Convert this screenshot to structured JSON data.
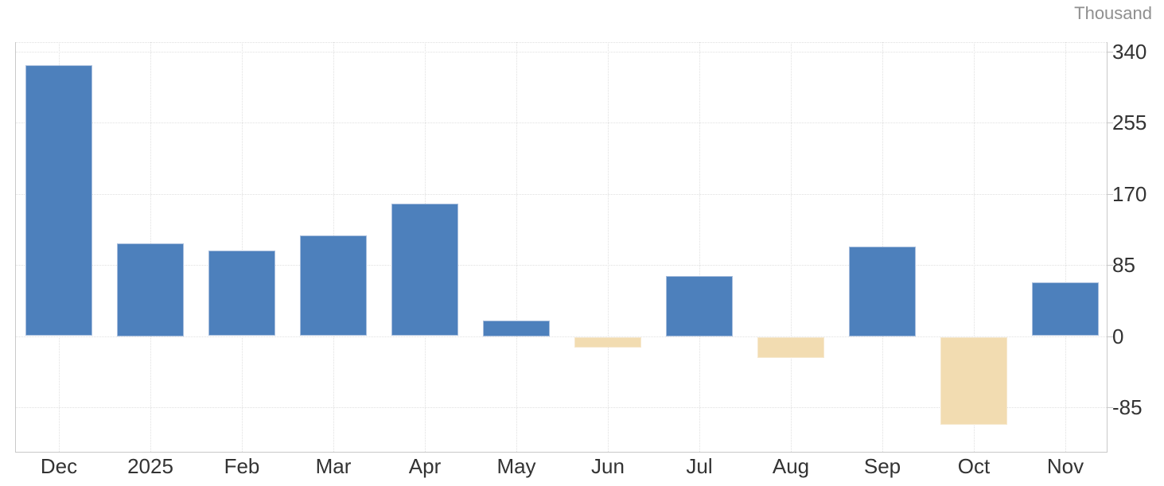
{
  "chart_data": {
    "type": "bar",
    "title": "",
    "unit_label": "Thousand",
    "categories": [
      "Dec",
      "2025",
      "Feb",
      "Mar",
      "Apr",
      "May",
      "Jun",
      "Jul",
      "Aug",
      "Sep",
      "Oct",
      "Nov"
    ],
    "values": [
      323,
      111,
      102,
      120,
      158,
      19,
      -13,
      72,
      -26,
      107,
      -105,
      64
    ],
    "y_ticks": [
      340,
      255,
      170,
      85,
      0,
      -85
    ],
    "ylim": [
      -138,
      351
    ],
    "grid": true,
    "legend": false,
    "colors": {
      "positive": "#4d80bc",
      "positive_border": "#a8bedd",
      "negative": "#f2dcb1",
      "negative_border": "#f6e8cd",
      "gridline": "#e0e0e0",
      "axis": "#c9c9c9",
      "tick_label": "#333333",
      "unit_label": "#8f8f8f"
    }
  }
}
